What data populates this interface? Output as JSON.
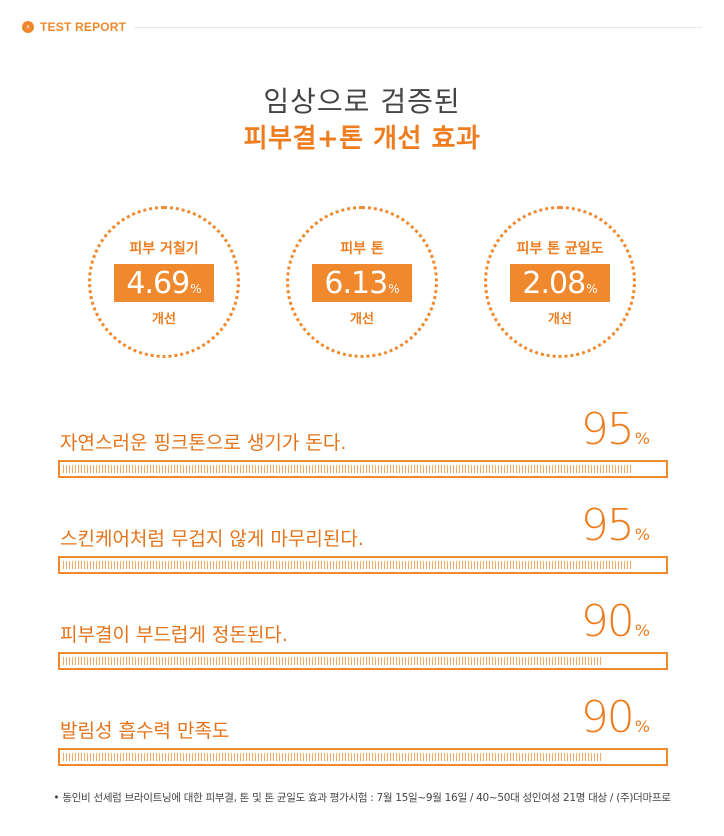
{
  "header": {
    "badge_icon": "chevron-right-icon",
    "badge_glyph": "›",
    "label": "TEST REPORT"
  },
  "title": {
    "line1": "임상으로 검증된",
    "line2": "피부결+톤 개선 효과"
  },
  "circles": [
    {
      "title": "피부 거칠기",
      "value": "4.69",
      "unit": "%",
      "footer": "개선"
    },
    {
      "title": "피부 톤",
      "value": "6.13",
      "unit": "%",
      "footer": "개선"
    },
    {
      "title": "피부 톤 균일도",
      "value": "2.08",
      "unit": "%",
      "footer": "개선"
    }
  ],
  "bars": [
    {
      "label": "자연스러운 핑크톤으로 생기가 돈다.",
      "percent": "95",
      "unit": "%",
      "fill_fraction": 0.95
    },
    {
      "label": "스킨케어처럼 무겁지 않게 마무리된다.",
      "percent": "95",
      "unit": "%",
      "fill_fraction": 0.95
    },
    {
      "label": "피부결이 부드럽게 정돈된다.",
      "percent": "90",
      "unit": "%",
      "fill_fraction": 0.9
    },
    {
      "label": "발림성 흡수력 만족도",
      "percent": "90",
      "unit": "%",
      "fill_fraction": 0.9
    }
  ],
  "footnote": "• 동인비 선세럼 브라이트닝에 대한 피부결, 톤 및 톤 균일도 효과 평가시험 : 7월 15일~9월 16일 / 40~50대 성인여성 21명 대상 / (주)더마프로",
  "colors": {
    "accent": "#f0892e",
    "accent_light": "#fbe3cc"
  }
}
